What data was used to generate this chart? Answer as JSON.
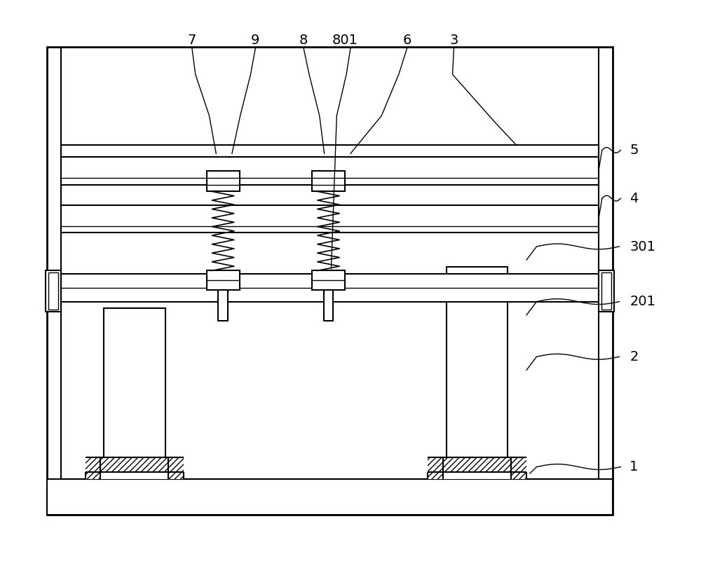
{
  "bg_color": "#ffffff",
  "line_color": "#000000",
  "fig_width": 10.0,
  "fig_height": 8.21,
  "lw_thin": 1.0,
  "lw_main": 1.5,
  "lw_thick": 2.0
}
